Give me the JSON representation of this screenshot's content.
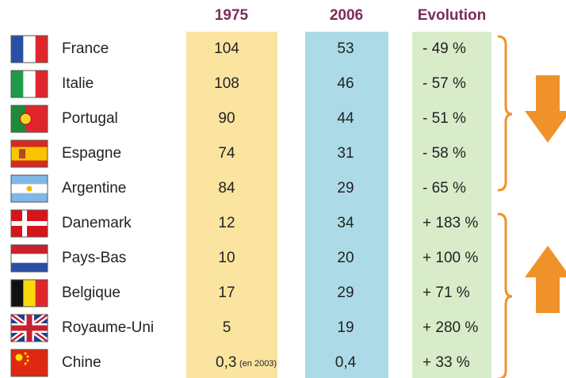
{
  "header": {
    "columns": [
      "1975",
      "2006",
      "Evolution"
    ]
  },
  "table": {
    "rows": [
      {
        "country": "France",
        "y1975": "104",
        "y2006": "53",
        "evolution": "- 49 %"
      },
      {
        "country": "Italie",
        "y1975": "108",
        "y2006": "46",
        "evolution": "- 57 %"
      },
      {
        "country": "Portugal",
        "y1975": "90",
        "y2006": "44",
        "evolution": "- 51 %"
      },
      {
        "country": "Espagne",
        "y1975": "74",
        "y2006": "31",
        "evolution": "- 58 %"
      },
      {
        "country": "Argentine",
        "y1975": "84",
        "y2006": "29",
        "evolution": "- 65 %"
      },
      {
        "country": "Danemark",
        "y1975": "12",
        "y2006": "34",
        "evolution": "+ 183 %"
      },
      {
        "country": "Pays-Bas",
        "y1975": "10",
        "y2006": "20",
        "evolution": "+ 100 %"
      },
      {
        "country": "Belgique",
        "y1975": "17",
        "y2006": "29",
        "evolution": "+ 71 %"
      },
      {
        "country": "Royaume-Uni",
        "y1975": "5",
        "y2006": "19",
        "evolution": "+ 280 %"
      },
      {
        "country": "Chine",
        "y1975": "0,3",
        "note": "(en 2003)",
        "y2006": "0,4",
        "evolution": "+ 33 %"
      }
    ]
  }
}
